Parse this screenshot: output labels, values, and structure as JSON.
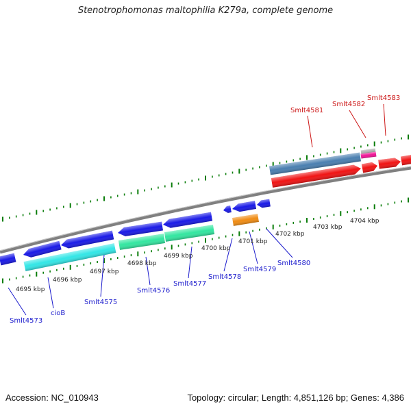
{
  "title": "Stenotrophomonas maltophilia K279a, complete genome",
  "footer": {
    "accession": "Accession: NC_010943",
    "topology": "Topology: circular; Length: 4,851,126 bp; Genes: 4,386"
  },
  "colors": {
    "backbone": "#808080",
    "gene_blue": "#1a1ae6",
    "gene_cyan": "#33e6e6",
    "gene_green": "#33e6a0",
    "gene_orange": "#f08c14",
    "gene_red": "#f01414",
    "gene_steelblue": "#4a7fb0",
    "gene_pink": "#f01496",
    "gene_grey": "#b4b4b4",
    "tick_green": "#0a7d0a",
    "label_blue": "#1a1acc",
    "label_red": "#cc1414"
  },
  "scale_labels": [
    "4695 kbp",
    "4696 kbp",
    "4697 kbp",
    "4698 kbp",
    "4699 kbp",
    "4700 kbp",
    "4701 kbp",
    "4702 kbp",
    "4703 kbp",
    "4704 kbp"
  ],
  "gene_labels": [
    {
      "name": "Smlt4573",
      "color": "blue"
    },
    {
      "name": "cioB",
      "color": "blue"
    },
    {
      "name": "Smlt4575",
      "color": "blue"
    },
    {
      "name": "Smlt4576",
      "color": "blue"
    },
    {
      "name": "Smlt4577",
      "color": "blue"
    },
    {
      "name": "Smlt4578",
      "color": "blue"
    },
    {
      "name": "Smlt4579",
      "color": "blue"
    },
    {
      "name": "Smlt4580",
      "color": "blue"
    },
    {
      "name": "Smlt4581",
      "color": "red"
    },
    {
      "name": "Smlt4582",
      "color": "red"
    },
    {
      "name": "Smlt4583",
      "color": "red"
    }
  ]
}
